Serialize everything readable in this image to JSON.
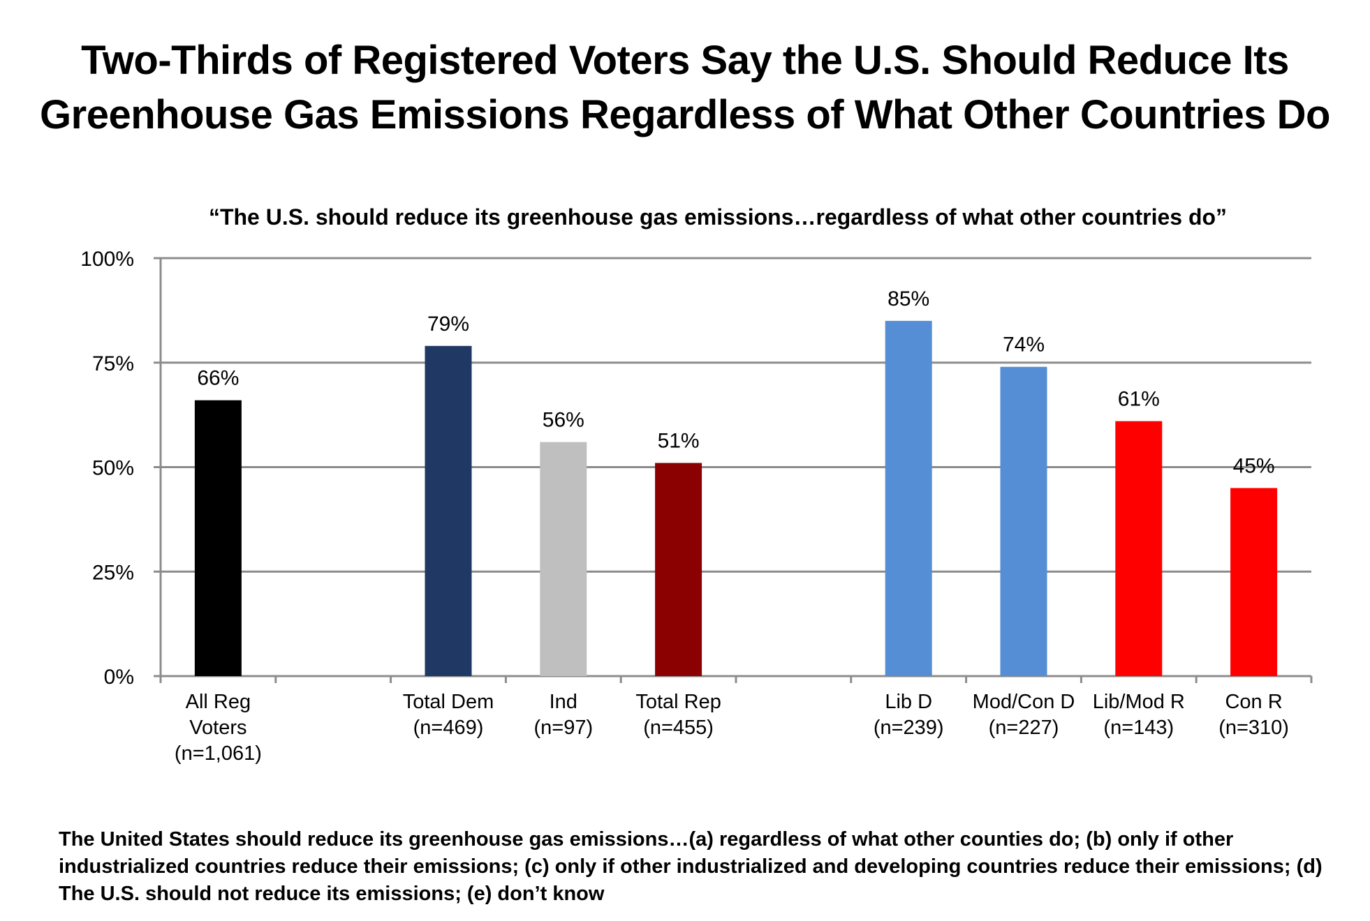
{
  "title": {
    "line1": "Two-Thirds of Registered Voters Say the U.S. Should Reduce Its",
    "line2": "Greenhouse Gas Emissions Regardless of What Other Countries Do"
  },
  "chart_data": {
    "type": "bar",
    "title": "“The U.S. should reduce its greenhouse gas emissions…regardless of what other countries do”",
    "xlabel": "",
    "ylabel": "",
    "ylim": [
      0,
      100
    ],
    "yticks": [
      {
        "value": 0,
        "label": "0%"
      },
      {
        "value": 25,
        "label": "25%"
      },
      {
        "value": 50,
        "label": "50%"
      },
      {
        "value": 75,
        "label": "75%"
      },
      {
        "value": 100,
        "label": "100%"
      }
    ],
    "grid": true,
    "legend": "none",
    "categories": [
      {
        "label_lines": [
          "All Reg",
          "Voters",
          "(n=1,061)"
        ],
        "value": 66,
        "value_label": "66%",
        "color": "#000000"
      },
      {
        "label_lines": [],
        "value": null,
        "value_label": "",
        "color": ""
      },
      {
        "label_lines": [
          "Total Dem",
          "(n=469)"
        ],
        "value": 79,
        "value_label": "79%",
        "color": "#1f3864"
      },
      {
        "label_lines": [
          "Ind",
          "(n=97)"
        ],
        "value": 56,
        "value_label": "56%",
        "color": "#bfbfbf"
      },
      {
        "label_lines": [
          "Total Rep",
          "(n=455)"
        ],
        "value": 51,
        "value_label": "51%",
        "color": "#8b0000"
      },
      {
        "label_lines": [],
        "value": null,
        "value_label": "",
        "color": ""
      },
      {
        "label_lines": [
          "Lib D",
          "(n=239)"
        ],
        "value": 85,
        "value_label": "85%",
        "color": "#558ed5"
      },
      {
        "label_lines": [
          "Mod/Con D",
          "(n=227)"
        ],
        "value": 74,
        "value_label": "74%",
        "color": "#558ed5"
      },
      {
        "label_lines": [
          "Lib/Mod R",
          "(n=143)"
        ],
        "value": 61,
        "value_label": "61%",
        "color": "#ff0000"
      },
      {
        "label_lines": [
          "Con R",
          "(n=310)"
        ],
        "value": 45,
        "value_label": "45%",
        "color": "#ff0000"
      }
    ]
  },
  "footnote": "The United States should reduce its greenhouse gas emissions…(a) regardless of what other counties do; (b) only if other industrialized countries reduce their emissions; (c) only if other industrialized and developing countries reduce their emissions; (d) The U.S. should not reduce its emissions; (e) don’t know"
}
